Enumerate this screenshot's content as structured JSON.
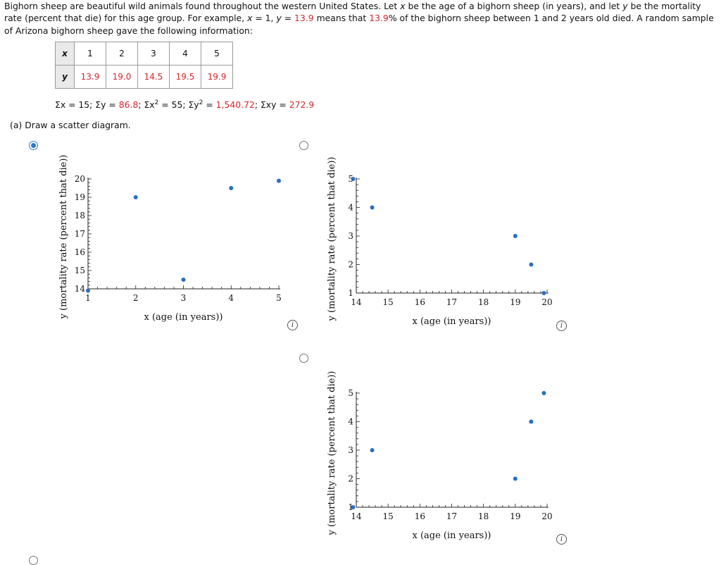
{
  "intro": {
    "p1": "Bighorn sheep are beautiful wild animals found throughout the western United States. Let ",
    "var_x": "x",
    "p2": " be the age of a bighorn sheep (in years), and let ",
    "var_y": "y",
    "p3": " be the mortality rate (percent that die) for this age group. For example, ",
    "ex_x": "x",
    "ex_x_val": " = 1, ",
    "ex_y": "y",
    "ex_y_eq": " = ",
    "ex_y_val": "13.9",
    "p4": " means that ",
    "pct_val": "13.9",
    "p5": "% of the bighorn sheep between 1 and 2 years old died. A random sample of Arizona bighorn sheep gave the following information:"
  },
  "table": {
    "x_label": "x",
    "y_label": "y",
    "x_values": [
      "1",
      "2",
      "3",
      "4",
      "5"
    ],
    "y_values": [
      "13.9",
      "19.0",
      "14.5",
      "19.5",
      "19.9"
    ]
  },
  "sums": {
    "sx": "Σx = 15; Σy = ",
    "sy_val": "86.8",
    "sx2": "; Σx",
    "sx2_exp": "2",
    "sx2_val": " = 55; Σy",
    "sy2_exp": "2",
    "sy2_eq": " = ",
    "sy2_val": "1,540.72",
    "sxy": "; Σxy = ",
    "sxy_val": "272.9"
  },
  "part_a": "(a)   Draw a scatter diagram.",
  "colors": {
    "accent": "#2a78d4",
    "red": "#d9262a",
    "point": "#2a6fbd"
  },
  "chart_data": [
    {
      "type": "scatter",
      "option": "A",
      "selected": true,
      "x": [
        1,
        2,
        3,
        4,
        5
      ],
      "y": [
        13.9,
        19.0,
        14.5,
        19.5,
        19.9
      ],
      "xlim": [
        1,
        5
      ],
      "ylim": [
        14,
        20
      ],
      "xticks": [
        "1",
        "2",
        "3",
        "4",
        "5"
      ],
      "yticks": [
        "14",
        "15",
        "16",
        "17",
        "18",
        "19",
        "20"
      ],
      "xlabel": "x (age (in years))",
      "ylabel": "y (mortality rate (percent that die))"
    },
    {
      "type": "scatter",
      "option": "B",
      "selected": false,
      "x": [
        13.9,
        14.5,
        19.0,
        19.5,
        19.9
      ],
      "y": [
        5,
        4,
        3,
        2,
        1
      ],
      "xlim": [
        14,
        20
      ],
      "ylim": [
        1,
        5
      ],
      "xticks": [
        "14",
        "15",
        "16",
        "17",
        "18",
        "19",
        "20"
      ],
      "yticks": [
        "1",
        "2",
        "3",
        "4",
        "5"
      ],
      "xlabel": "x (age (in years))",
      "ylabel": "y (mortality rate (percent that die))"
    },
    {
      "type": "scatter",
      "option": "C",
      "selected": false,
      "x": [
        13.9,
        14.5,
        19.0,
        19.5,
        19.9
      ],
      "y": [
        1,
        3,
        2,
        4,
        5
      ],
      "xlim": [
        14,
        20
      ],
      "ylim": [
        1,
        5
      ],
      "xticks": [
        "14",
        "15",
        "16",
        "17",
        "18",
        "19",
        "20"
      ],
      "yticks": [
        "1",
        "2",
        "3",
        "4",
        "5"
      ],
      "xlabel": "x (age (in years))",
      "ylabel": "y (mortality rate (percent that die))"
    }
  ],
  "info_glyph": "i"
}
